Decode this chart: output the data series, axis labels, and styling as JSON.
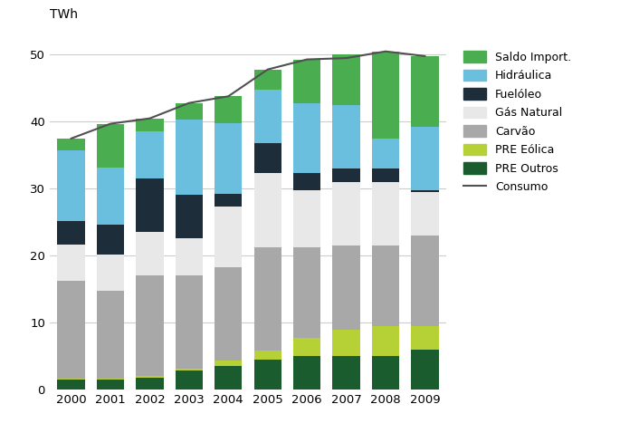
{
  "years": [
    2000,
    2001,
    2002,
    2003,
    2004,
    2005,
    2006,
    2007,
    2008,
    2009
  ],
  "series": {
    "PRE Outros": [
      1.5,
      1.5,
      1.8,
      2.8,
      3.5,
      4.5,
      5.0,
      5.0,
      5.0,
      6.0
    ],
    "PRE Eólica": [
      0.2,
      0.2,
      0.2,
      0.3,
      0.8,
      1.3,
      2.8,
      4.0,
      4.5,
      3.5
    ],
    "Carvão": [
      14.5,
      13.0,
      15.0,
      14.0,
      14.0,
      15.5,
      13.5,
      12.5,
      12.0,
      13.5
    ],
    "Gás Natural": [
      5.5,
      5.5,
      6.5,
      5.5,
      9.0,
      11.0,
      8.5,
      9.5,
      9.5,
      6.5
    ],
    "Fuelóleo": [
      3.5,
      4.5,
      8.0,
      6.5,
      2.0,
      4.5,
      2.5,
      2.0,
      2.0,
      0.3
    ],
    "Hidráulica": [
      10.5,
      8.5,
      7.0,
      11.2,
      10.5,
      8.0,
      10.5,
      9.5,
      4.5,
      9.5
    ],
    "Saldo Import.": [
      1.8,
      6.5,
      2.0,
      2.5,
      4.0,
      3.0,
      6.5,
      7.5,
      13.0,
      10.5
    ]
  },
  "consumo": [
    37.5,
    39.7,
    40.5,
    42.8,
    43.8,
    47.8,
    49.3,
    49.5,
    50.5,
    49.8
  ],
  "colors": {
    "PRE Outros": "#1a5c2e",
    "PRE Eólica": "#b5d135",
    "Carvão": "#a8a8a8",
    "Gás Natural": "#e8e8e8",
    "Fuelóleo": "#1e2d3a",
    "Hidráulica": "#6abfdf",
    "Saldo Import.": "#4aad50"
  },
  "consumo_color": "#505050",
  "ylabel": "TWh",
  "ylim": [
    0,
    53
  ],
  "yticks": [
    0,
    10,
    20,
    30,
    40,
    50
  ],
  "bar_width": 0.7,
  "stack_order": [
    "PRE Outros",
    "PRE Eólica",
    "Carvão",
    "Gás Natural",
    "Fuelóleo",
    "Hidráulica",
    "Saldo Import."
  ],
  "background_color": "#ffffff",
  "grid_color": "#cccccc"
}
